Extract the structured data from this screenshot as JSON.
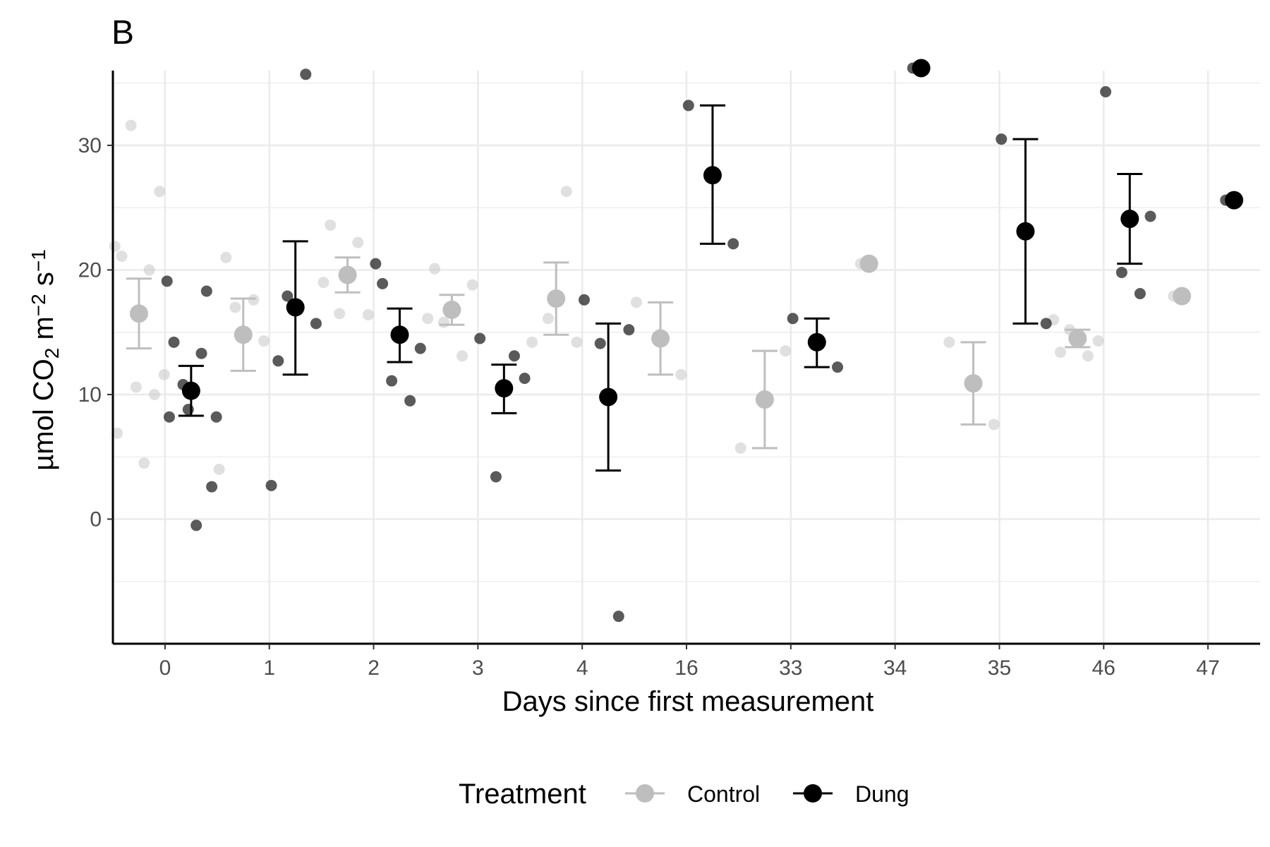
{
  "chart_data": {
    "type": "scatter",
    "panel_tag": "B",
    "xlabel": "Days since first measurement",
    "ylabel": {
      "parts": [
        "µmol CO",
        "2",
        " m",
        "−2",
        " s",
        "−1"
      ],
      "kinds": [
        "normal",
        "sub",
        "normal",
        "sup",
        "normal",
        "sup"
      ]
    },
    "categories": [
      "0",
      "1",
      "2",
      "3",
      "4",
      "16",
      "33",
      "34",
      "35",
      "46",
      "47"
    ],
    "ylim": [
      -10,
      36
    ],
    "yticks": [
      0,
      10,
      20,
      30
    ],
    "grid": true,
    "legend": {
      "title": "Treatment",
      "position": "bottom",
      "entries": [
        "Control",
        "Dung"
      ]
    },
    "colors": {
      "Control": "#bebebe",
      "Dung": "#000000"
    },
    "series": [
      {
        "name": "Control",
        "summary": [
          {
            "category": "0",
            "mean": 16.5,
            "lower": 13.7,
            "upper": 19.3
          },
          {
            "category": "1",
            "mean": 14.8,
            "lower": 11.9,
            "upper": 17.7
          },
          {
            "category": "2",
            "mean": 19.6,
            "lower": 18.2,
            "upper": 21.0
          },
          {
            "category": "3",
            "mean": 16.8,
            "lower": 15.6,
            "upper": 18.0
          },
          {
            "category": "4",
            "mean": 17.7,
            "lower": 14.8,
            "upper": 20.6
          },
          {
            "category": "16",
            "mean": 14.5,
            "lower": 11.6,
            "upper": 17.4
          },
          {
            "category": "33",
            "mean": 9.6,
            "lower": 5.7,
            "upper": 13.5
          },
          {
            "category": "34",
            "mean": 20.5,
            "lower": null,
            "upper": null
          },
          {
            "category": "35",
            "mean": 10.9,
            "lower": 7.6,
            "upper": 14.2
          },
          {
            "category": "46",
            "mean": 14.5,
            "lower": 13.8,
            "upper": 15.2
          },
          {
            "category": "47",
            "mean": 17.9,
            "lower": null,
            "upper": null
          }
        ],
        "points": [
          {
            "category": "0",
            "y": [
              21.9,
              26.3,
              31.6,
              20.0,
              21.1,
              11.6,
              10.6,
              10.0,
              6.9,
              4.5
            ]
          },
          {
            "category": "1",
            "y": [
              4.0,
              14.3,
              17.0,
              17.6,
              21.0
            ]
          },
          {
            "category": "2",
            "y": [
              19.0,
              16.4,
              16.5,
              22.2,
              23.6
            ]
          },
          {
            "category": "3",
            "y": [
              16.1,
              18.8,
              15.8,
              13.1,
              20.1
            ]
          },
          {
            "category": "4",
            "y": [
              14.2,
              14.2,
              16.1,
              26.3
            ]
          },
          {
            "category": "16",
            "y": [
              17.4,
              11.6
            ]
          },
          {
            "category": "33",
            "y": [
              5.7,
              13.5
            ]
          },
          {
            "category": "34",
            "y": [
              20.5
            ]
          },
          {
            "category": "35",
            "y": [
              14.2,
              7.6
            ]
          },
          {
            "category": "46",
            "y": [
              16.0,
              14.3,
              15.2,
              13.1,
              13.4
            ]
          },
          {
            "category": "47",
            "y": [
              17.9
            ]
          }
        ]
      },
      {
        "name": "Dung",
        "summary": [
          {
            "category": "0",
            "mean": 10.3,
            "lower": 8.3,
            "upper": 12.3
          },
          {
            "category": "1",
            "mean": 17.0,
            "lower": 11.6,
            "upper": 22.3
          },
          {
            "category": "2",
            "mean": 14.8,
            "lower": 12.6,
            "upper": 16.9
          },
          {
            "category": "3",
            "mean": 10.5,
            "lower": 8.5,
            "upper": 12.4
          },
          {
            "category": "4",
            "mean": 9.8,
            "lower": 3.9,
            "upper": 15.7
          },
          {
            "category": "16",
            "mean": 27.6,
            "lower": 22.1,
            "upper": 33.2
          },
          {
            "category": "33",
            "mean": 14.2,
            "lower": 12.2,
            "upper": 16.1
          },
          {
            "category": "34",
            "mean": 36.2,
            "lower": null,
            "upper": null
          },
          {
            "category": "35",
            "mean": 23.1,
            "lower": 15.7,
            "upper": 30.5
          },
          {
            "category": "46",
            "mean": 24.1,
            "lower": 20.5,
            "upper": 27.7
          },
          {
            "category": "47",
            "mean": 25.6,
            "lower": null,
            "upper": null
          }
        ],
        "points": [
          {
            "category": "0",
            "y": [
              19.1,
              2.6,
              10.8,
              13.3,
              14.2,
              8.2,
              8.8,
              18.3,
              8.2,
              -0.5
            ]
          },
          {
            "category": "1",
            "y": [
              2.7,
              15.7,
              17.9,
              35.7,
              12.7
            ]
          },
          {
            "category": "2",
            "y": [
              20.5,
              13.7,
              11.1,
              9.5,
              18.9
            ]
          },
          {
            "category": "3",
            "y": [
              14.5,
              11.3,
              3.4,
              13.1
            ]
          },
          {
            "category": "4",
            "y": [
              17.6,
              15.2,
              14.1,
              -7.8
            ]
          },
          {
            "category": "16",
            "y": [
              33.2,
              22.1
            ]
          },
          {
            "category": "33",
            "y": [
              16.1,
              12.2
            ]
          },
          {
            "category": "34",
            "y": [
              36.2
            ]
          },
          {
            "category": "35",
            "y": [
              30.5,
              15.7
            ]
          },
          {
            "category": "46",
            "y": [
              34.3,
              24.3,
              19.8,
              18.1
            ]
          },
          {
            "category": "47",
            "y": [
              25.6
            ]
          }
        ]
      }
    ]
  }
}
